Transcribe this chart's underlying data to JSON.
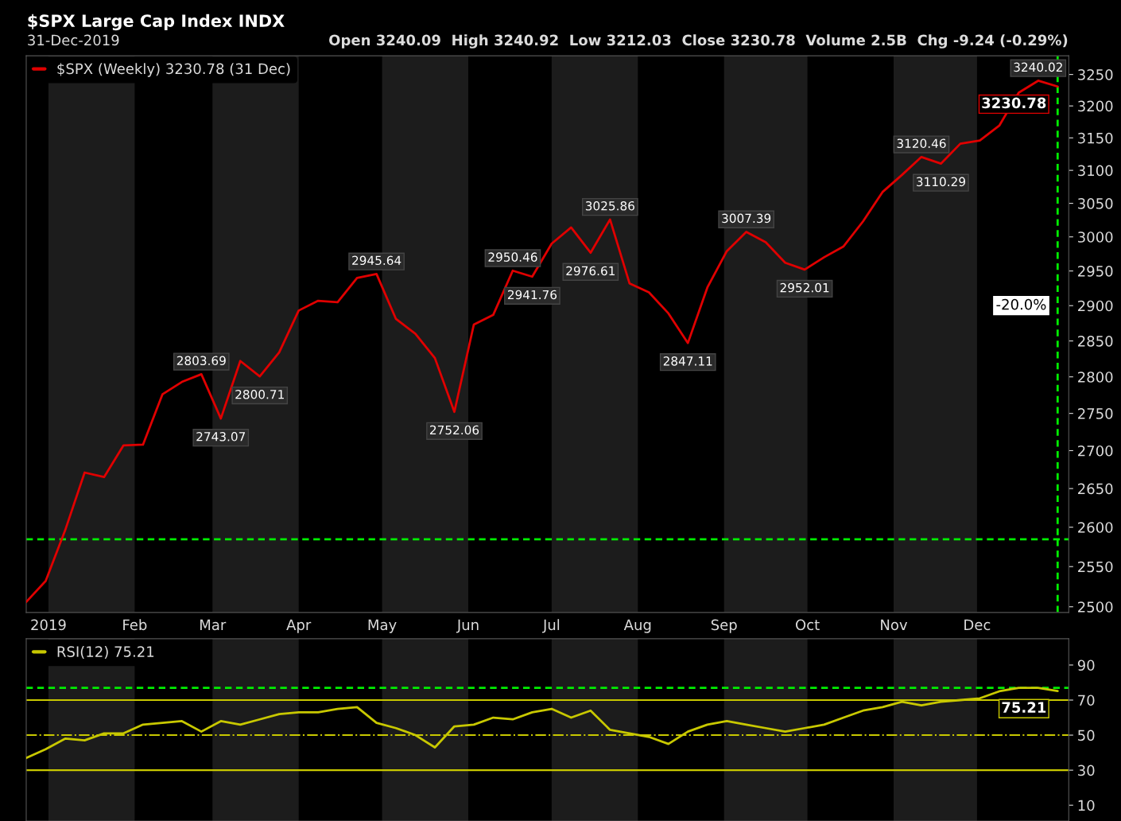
{
  "chart_data": [
    {
      "type": "line",
      "title": "$SPX Large Cap Index INDX",
      "subtitle": "31-Dec-2019",
      "annotations": [
        "Open 3240.09  High 3240.92  Low 3212.03  Close 3230.78  Volume 2.5B  Chg -9.24 (-0.29%)",
        {
          "text": "3230.78",
          "x": "2019-12-30",
          "y": 3230.78
        },
        {
          "text": "-20.0%",
          "x": "2019-12-30",
          "y": 2900
        }
      ],
      "x": [
        "2018-12-24",
        "2018-12-31",
        "2019-01-07",
        "2019-01-14",
        "2019-01-21",
        "2019-01-28",
        "2019-02-04",
        "2019-02-11",
        "2019-02-18",
        "2019-02-25",
        "2019-03-04",
        "2019-03-11",
        "2019-03-18",
        "2019-03-25",
        "2019-04-01",
        "2019-04-08",
        "2019-04-15",
        "2019-04-22",
        "2019-04-29",
        "2019-05-06",
        "2019-05-13",
        "2019-05-20",
        "2019-05-27",
        "2019-06-03",
        "2019-06-10",
        "2019-06-17",
        "2019-06-24",
        "2019-07-01",
        "2019-07-08",
        "2019-07-15",
        "2019-07-22",
        "2019-07-29",
        "2019-08-05",
        "2019-08-12",
        "2019-08-19",
        "2019-08-26",
        "2019-09-02",
        "2019-09-09",
        "2019-09-16",
        "2019-09-23",
        "2019-09-30",
        "2019-10-07",
        "2019-10-14",
        "2019-10-21",
        "2019-10-28",
        "2019-11-04",
        "2019-11-11",
        "2019-11-18",
        "2019-11-25",
        "2019-12-02",
        "2019-12-09",
        "2019-12-16",
        "2019-12-23",
        "2019-12-30"
      ],
      "series": [
        {
          "name": "$SPX (Weekly) 3230.78 (31 Dec)",
          "color": "#e00000",
          "values": [
            2506,
            2532,
            2596,
            2671,
            2665,
            2707,
            2708,
            2776,
            2793,
            2803.69,
            2743.07,
            2822,
            2800.71,
            2834,
            2893,
            2907,
            2905,
            2940,
            2945.64,
            2881,
            2860,
            2826,
            2752.06,
            2873,
            2887,
            2950.46,
            2941.76,
            2990,
            3014,
            2976.61,
            3025.86,
            2932,
            2919,
            2889,
            2847.11,
            2926,
            2979,
            3007.39,
            2992,
            2962,
            2952.01,
            2970,
            2986,
            3023,
            3067,
            3093,
            3120.46,
            3110.29,
            3141,
            3146,
            3169,
            3221,
            3240.02,
            3230.78
          ],
          "value_labels": [
            null,
            null,
            null,
            null,
            null,
            null,
            null,
            null,
            null,
            "2803.69",
            "2743.07",
            null,
            "2800.71",
            null,
            null,
            null,
            null,
            null,
            "2945.64",
            null,
            null,
            null,
            "2752.06",
            null,
            null,
            "2950.46",
            "2941.76",
            null,
            null,
            "2976.61",
            "3025.86",
            null,
            null,
            null,
            "2847.11",
            null,
            null,
            "3007.39",
            null,
            null,
            "2952.01",
            null,
            null,
            null,
            null,
            null,
            "3120.46",
            "3110.29",
            null,
            null,
            null,
            null,
            "3240.02",
            null
          ]
        }
      ],
      "log": "y",
      "xlim": [
        "2018-12-24",
        "2020-01-03"
      ],
      "ylim": [
        2493,
        3280
      ],
      "xticks": [
        {
          "value": "2019-01-01",
          "label": "2019"
        },
        {
          "value": "2019-02-01",
          "label": "Feb"
        },
        {
          "value": "2019-03-01",
          "label": "Mar"
        },
        {
          "value": "2019-04-01",
          "label": "Apr"
        },
        {
          "value": "2019-05-01",
          "label": "May"
        },
        {
          "value": "2019-06-01",
          "label": "Jun"
        },
        {
          "value": "2019-07-01",
          "label": "Jul"
        },
        {
          "value": "2019-08-01",
          "label": "Aug"
        },
        {
          "value": "2019-09-01",
          "label": "Sep"
        },
        {
          "value": "2019-10-01",
          "label": "Oct"
        },
        {
          "value": "2019-11-01",
          "label": "Nov"
        },
        {
          "value": "2019-12-01",
          "label": "Dec"
        }
      ],
      "yticks": [
        2500,
        2550,
        2600,
        2650,
        2700,
        2750,
        2800,
        2850,
        2900,
        2950,
        3000,
        3050,
        3100,
        3150,
        3200,
        3250
      ],
      "bands": [
        {
          "axis": "x",
          "from": "2019-01-01",
          "to": "2019-02-01",
          "color": "#1c1c1c"
        },
        {
          "axis": "x",
          "from": "2019-03-01",
          "to": "2019-04-01",
          "color": "#1c1c1c"
        },
        {
          "axis": "x",
          "from": "2019-05-01",
          "to": "2019-06-01",
          "color": "#1c1c1c"
        },
        {
          "axis": "x",
          "from": "2019-07-01",
          "to": "2019-08-01",
          "color": "#1c1c1c"
        },
        {
          "axis": "x",
          "from": "2019-09-01",
          "to": "2019-10-01",
          "color": "#1c1c1c"
        },
        {
          "axis": "x",
          "from": "2019-11-01",
          "to": "2019-12-01",
          "color": "#1c1c1c"
        }
      ],
      "ref_lines": [
        {
          "axis": "y",
          "value": 2584.62,
          "color": "#00ee00",
          "line_style": "dashed"
        },
        {
          "axis": "x",
          "value": "2019-12-30",
          "color": "#00ee00",
          "line_style": "dashed"
        }
      ],
      "legend": "top left",
      "grid": false,
      "marker": "none",
      "line_style": "solid"
    },
    {
      "type": "line",
      "x": [
        "2018-12-24",
        "2018-12-31",
        "2019-01-07",
        "2019-01-14",
        "2019-01-21",
        "2019-01-28",
        "2019-02-04",
        "2019-02-11",
        "2019-02-18",
        "2019-02-25",
        "2019-03-04",
        "2019-03-11",
        "2019-03-18",
        "2019-03-25",
        "2019-04-01",
        "2019-04-08",
        "2019-04-15",
        "2019-04-22",
        "2019-04-29",
        "2019-05-06",
        "2019-05-13",
        "2019-05-20",
        "2019-05-27",
        "2019-06-03",
        "2019-06-10",
        "2019-06-17",
        "2019-06-24",
        "2019-07-01",
        "2019-07-08",
        "2019-07-15",
        "2019-07-22",
        "2019-07-29",
        "2019-08-05",
        "2019-08-12",
        "2019-08-19",
        "2019-08-26",
        "2019-09-02",
        "2019-09-09",
        "2019-09-16",
        "2019-09-23",
        "2019-09-30",
        "2019-10-07",
        "2019-10-14",
        "2019-10-21",
        "2019-10-28",
        "2019-11-04",
        "2019-11-11",
        "2019-11-18",
        "2019-11-25",
        "2019-12-02",
        "2019-12-09",
        "2019-12-16",
        "2019-12-23",
        "2019-12-30"
      ],
      "series": [
        {
          "name": "RSI(12) 75.21",
          "color": "#c8c800",
          "values": [
            37,
            42,
            48,
            47,
            51,
            51,
            56,
            57,
            58,
            52,
            58,
            56,
            59,
            62,
            63,
            63,
            65,
            66,
            57,
            54,
            50,
            43,
            55,
            56,
            60,
            59,
            63,
            65,
            60,
            64,
            53,
            51,
            49,
            45,
            52,
            56,
            58,
            56,
            54,
            52,
            54,
            56,
            60,
            64,
            66,
            69,
            67,
            69,
            70,
            71,
            75,
            77,
            77,
            75.21
          ]
        }
      ],
      "annotations": [
        {
          "text": "75.21",
          "x": "2019-12-30",
          "y": 75.21
        }
      ],
      "xlim": [
        "2018-12-24",
        "2020-01-03"
      ],
      "ylim": [
        1,
        105
      ],
      "yticks": [
        10,
        30,
        50,
        70,
        90
      ],
      "tick_labels": "y",
      "bands": [
        {
          "axis": "x",
          "from": "2019-01-01",
          "to": "2019-02-01",
          "color": "#1c1c1c"
        },
        {
          "axis": "x",
          "from": "2019-03-01",
          "to": "2019-04-01",
          "color": "#1c1c1c"
        },
        {
          "axis": "x",
          "from": "2019-05-01",
          "to": "2019-06-01",
          "color": "#1c1c1c"
        },
        {
          "axis": "x",
          "from": "2019-07-01",
          "to": "2019-08-01",
          "color": "#1c1c1c"
        },
        {
          "axis": "x",
          "from": "2019-09-01",
          "to": "2019-10-01",
          "color": "#1c1c1c"
        },
        {
          "axis": "x",
          "from": "2019-11-01",
          "to": "2019-12-01",
          "color": "#1c1c1c"
        }
      ],
      "ref_lines": [
        {
          "axis": "y",
          "value": 77,
          "color": "#00ee00",
          "line_style": "dashed"
        },
        {
          "axis": "y",
          "value": 70,
          "color": "#c8c800",
          "line_style": "solid"
        },
        {
          "axis": "y",
          "value": 50,
          "color": "#c8c800",
          "line_style": "dashdot"
        },
        {
          "axis": "y",
          "value": 30,
          "color": "#c8c800",
          "line_style": "solid"
        }
      ],
      "legend": "top left",
      "grid": false,
      "marker": "none",
      "line_style": "solid"
    }
  ]
}
